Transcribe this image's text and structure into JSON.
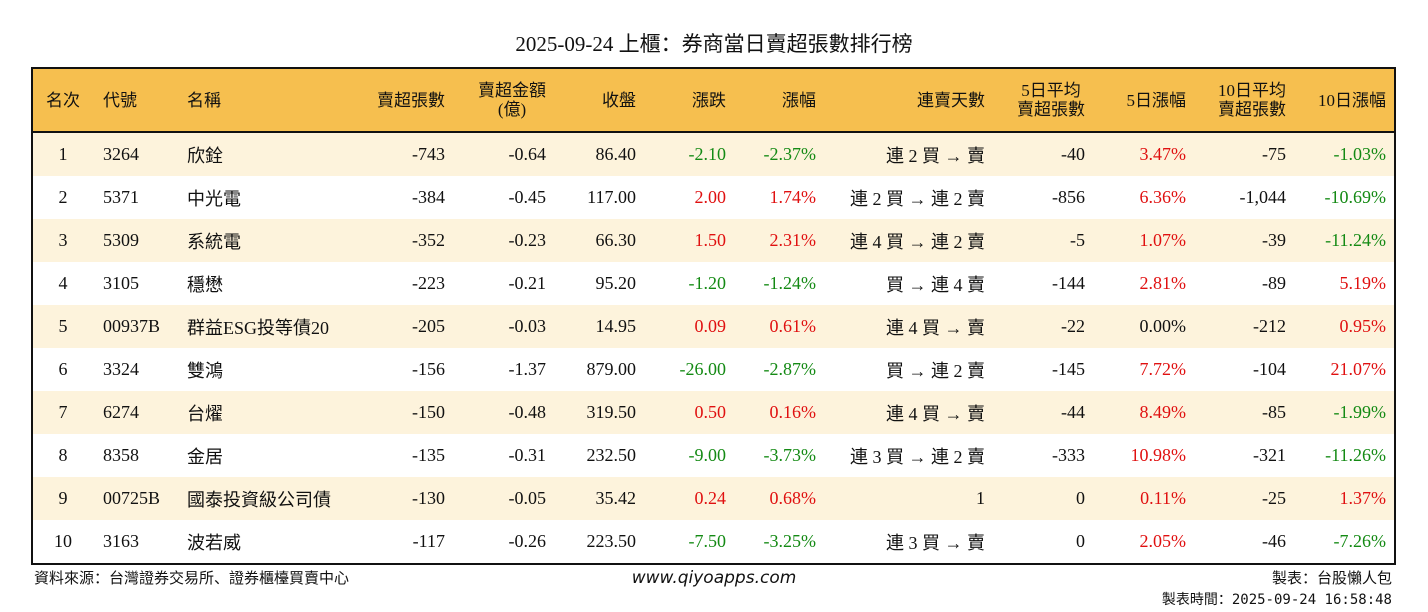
{
  "title": "2025-09-24 上櫃：券商當日賣超張數排行榜",
  "headers": [
    "名次",
    "代號",
    "名稱",
    "賣超張數",
    "賣超金額\n(億)",
    "收盤",
    "漲跌",
    "漲幅",
    "連賣天數",
    "5日平均\n賣超張數",
    "5日漲幅",
    "10日平均\n賣超張數",
    "10日漲幅"
  ],
  "rows": [
    [
      "1",
      "3264",
      "欣銓",
      "-743",
      "-0.64",
      "86.40",
      "-2.10",
      "-2.37%",
      "連 2 買 → 賣",
      "-40",
      "3.47%",
      "-75",
      "-1.03%"
    ],
    [
      "2",
      "5371",
      "中光電",
      "-384",
      "-0.45",
      "117.00",
      "2.00",
      "1.74%",
      "連 2 買 → 連 2 賣",
      "-856",
      "6.36%",
      "-1,044",
      "-10.69%"
    ],
    [
      "3",
      "5309",
      "系統電",
      "-352",
      "-0.23",
      "66.30",
      "1.50",
      "2.31%",
      "連 4 買 → 連 2 賣",
      "-5",
      "1.07%",
      "-39",
      "-11.24%"
    ],
    [
      "4",
      "3105",
      "穩懋",
      "-223",
      "-0.21",
      "95.20",
      "-1.20",
      "-1.24%",
      "買 → 連 4 賣",
      "-144",
      "2.81%",
      "-89",
      "5.19%"
    ],
    [
      "5",
      "00937B",
      "群益ESG投等債20",
      "-205",
      "-0.03",
      "14.95",
      "0.09",
      "0.61%",
      "連 4 買 → 賣",
      "-22",
      "0.00%",
      "-212",
      "0.95%"
    ],
    [
      "6",
      "3324",
      "雙鴻",
      "-156",
      "-1.37",
      "879.00",
      "-26.00",
      "-2.87%",
      "買 → 連 2 賣",
      "-145",
      "7.72%",
      "-104",
      "21.07%"
    ],
    [
      "7",
      "6274",
      "台燿",
      "-150",
      "-0.48",
      "319.50",
      "0.50",
      "0.16%",
      "連 4 買 → 賣",
      "-44",
      "8.49%",
      "-85",
      "-1.99%"
    ],
    [
      "8",
      "8358",
      "金居",
      "-135",
      "-0.31",
      "232.50",
      "-9.00",
      "-3.73%",
      "連 3 買 → 連 2 賣",
      "-333",
      "10.98%",
      "-321",
      "-11.26%"
    ],
    [
      "9",
      "00725B",
      "國泰投資級公司債",
      "-130",
      "-0.05",
      "35.42",
      "0.24",
      "0.68%",
      "1",
      "0",
      "0.11%",
      "-25",
      "1.37%"
    ],
    [
      "10",
      "3163",
      "波若威",
      "-117",
      "-0.26",
      "223.50",
      "-7.50",
      "-3.25%",
      "連 3 買 → 賣",
      "0",
      "2.05%",
      "-46",
      "-7.26%"
    ]
  ],
  "footer": {
    "source": "資料來源：台灣證券交易所、證券櫃檯買賣中心",
    "site": "www.qiyoapps.com",
    "maker": "製表：台股懶人包",
    "time": "製表時間：2025-09-24 16:58:48"
  },
  "colors": {
    "header_bg": "#F6BF4F",
    "odd_row": "#FDF3DC",
    "up": "#e01010",
    "down": "#148a14"
  }
}
